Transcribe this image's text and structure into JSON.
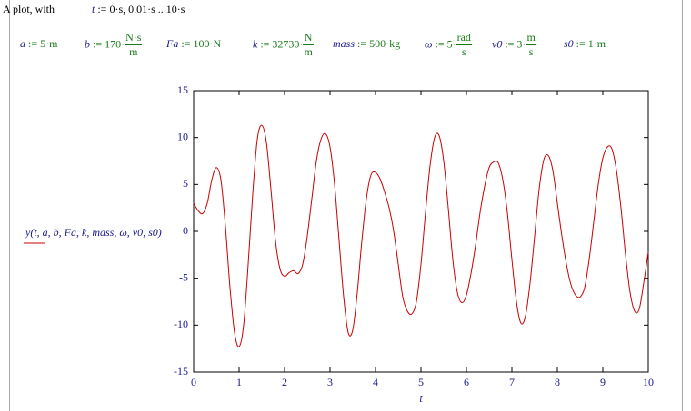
{
  "header": {
    "text": "A plot, with",
    "range_name": "t",
    "range_rest": ":= 0·s, 0.01·s .. 10·s"
  },
  "definitions": [
    {
      "name": "a",
      "rest": ":= 5·m"
    },
    {
      "name": "b",
      "rest": ":= 170·",
      "num": "N·s",
      "den": "m"
    },
    {
      "name": "Fa",
      "rest": ":= 100·N"
    },
    {
      "name": "k",
      "rest": ":= 32730·",
      "num": "N",
      "den": "m"
    },
    {
      "name": "mass",
      "rest": ":= 500·kg"
    },
    {
      "name": "ω",
      "rest": ":= 5·",
      "num": "rad",
      "den": "s"
    },
    {
      "name": "v0",
      "rest": ":= 3·",
      "num": "m",
      "den": "s"
    },
    {
      "name": "s0",
      "rest": ":= 1·m"
    }
  ],
  "chart_data": {
    "type": "line",
    "xlabel": "t",
    "ylabel": "y(t, a, b, Fa, k, mass, ω, v0, s0)",
    "xlim": [
      0,
      10
    ],
    "ylim": [
      -15,
      15
    ],
    "xticks": [
      0,
      1,
      2,
      3,
      4,
      5,
      6,
      7,
      8,
      9,
      10
    ],
    "yticks": [
      -15,
      -10,
      -5,
      0,
      5,
      10,
      15
    ],
    "x": [
      0,
      0.1,
      0.2,
      0.3,
      0.4,
      0.5,
      0.6,
      0.7,
      0.8,
      0.9,
      1,
      1.1,
      1.2,
      1.3,
      1.4,
      1.5,
      1.6,
      1.7,
      1.8,
      1.9,
      2,
      2.1,
      2.2,
      2.3,
      2.4,
      2.5,
      2.6,
      2.7,
      2.8,
      2.9,
      3,
      3.1,
      3.2,
      3.3,
      3.4,
      3.5,
      3.6,
      3.7,
      3.8,
      3.9,
      4,
      4.1,
      4.2,
      4.3,
      4.4,
      4.5,
      4.6,
      4.7,
      4.8,
      4.9,
      5,
      5.1,
      5.2,
      5.3,
      5.4,
      5.5,
      5.6,
      5.7,
      5.8,
      5.9,
      6,
      6.1,
      6.2,
      6.3,
      6.4,
      6.5,
      6.6,
      6.7,
      6.8,
      6.9,
      7,
      7.1,
      7.2,
      7.3,
      7.4,
      7.5,
      7.6,
      7.7,
      7.8,
      7.9,
      8,
      8.1,
      8.2,
      8.3,
      8.4,
      8.5,
      8.6,
      8.7,
      8.8,
      8.9,
      9,
      9.1,
      9.2,
      9.3,
      9.4,
      9.5,
      9.6,
      9.7,
      9.8,
      9.9,
      10
    ],
    "series": [
      {
        "color": "#cc0000",
        "values": [
          3,
          2.2,
          1.9,
          3,
          5.5,
          6.8,
          5.5,
          0.5,
          -6,
          -10.8,
          -12.3,
          -10,
          -3.5,
          4,
          9.8,
          11.3,
          9.5,
          4.5,
          -1,
          -4,
          -4.8,
          -4.4,
          -4.2,
          -4.5,
          -3.5,
          -0.5,
          3.5,
          7.5,
          9.8,
          10.4,
          9,
          5,
          -1,
          -7,
          -10.8,
          -10.5,
          -6.5,
          -1,
          3.5,
          6,
          6.3,
          5.6,
          4.2,
          2.5,
          0,
          -3.5,
          -7,
          -8.5,
          -8.8,
          -7.5,
          -3.5,
          2,
          7,
          10,
          10.2,
          7.5,
          2.5,
          -3,
          -6.5,
          -7.6,
          -6.8,
          -4.5,
          -1.5,
          2,
          4.8,
          6.8,
          7.4,
          7.3,
          5.5,
          2,
          -3,
          -7.5,
          -9.8,
          -9,
          -5.5,
          -0.5,
          4.5,
          7.6,
          8.1,
          6.5,
          3,
          -0.5,
          -3.5,
          -5.7,
          -6.8,
          -7,
          -6,
          -3,
          1,
          5,
          7.8,
          9,
          8.8,
          6.5,
          2.5,
          -2.5,
          -6.5,
          -8.5,
          -8.3,
          -5.5,
          -2.2
        ]
      }
    ]
  }
}
